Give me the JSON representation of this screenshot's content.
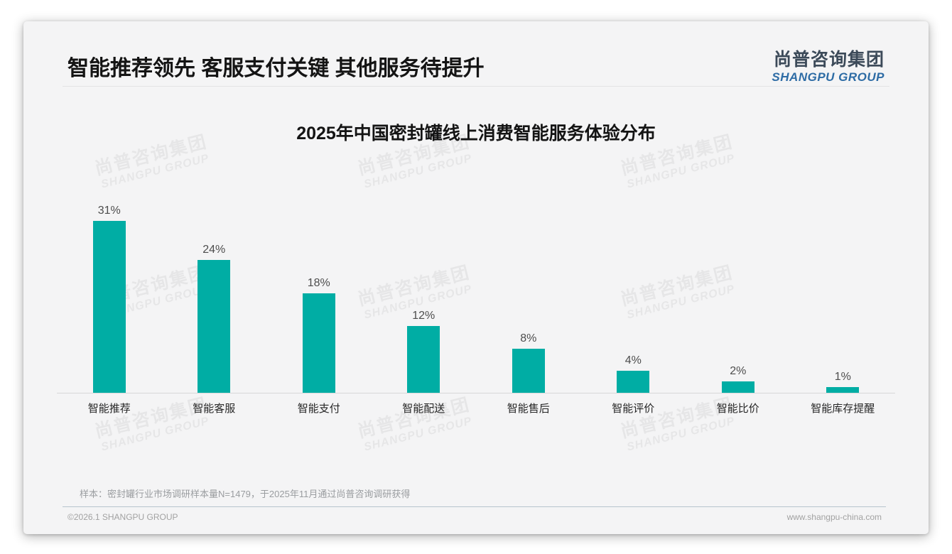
{
  "header": {
    "title": "智能推荐领先 客服支付关键 其他服务待提升",
    "logo": {
      "cn": "尚普咨询集团",
      "en": "SHANGPU GROUP"
    }
  },
  "watermark": {
    "line1": "尚普咨询集团",
    "line2": "SHANGPU GROUP"
  },
  "chart_data": {
    "type": "bar",
    "title": "2025年中国密封罐线上消费智能服务体验分布",
    "categories": [
      "智能推荐",
      "智能客服",
      "智能支付",
      "智能配送",
      "智能售后",
      "智能评价",
      "智能比价",
      "智能库存提醒"
    ],
    "values": [
      31,
      24,
      18,
      12,
      8,
      4,
      2,
      1
    ],
    "value_labels": [
      "31%",
      "24%",
      "18%",
      "12%",
      "8%",
      "4%",
      "2%",
      "1%"
    ],
    "xlabel": "",
    "ylabel": "",
    "ylim": [
      0,
      35
    ],
    "grid": false,
    "legend": false,
    "bar_color": "#00ada4"
  },
  "footnote": "样本：密封罐行业市场调研样本量N=1479，于2025年11月通过尚普咨询调研获得",
  "footer": {
    "copyright": "©2026.1 SHANGPU GROUP",
    "website": "www.shangpu-china.com"
  },
  "colors": {
    "bar_teal": "#00ada4",
    "logo_blue": "#2e6ca5",
    "logo_dark": "#3c4a59",
    "slide_bg": "#f4f4f5"
  }
}
